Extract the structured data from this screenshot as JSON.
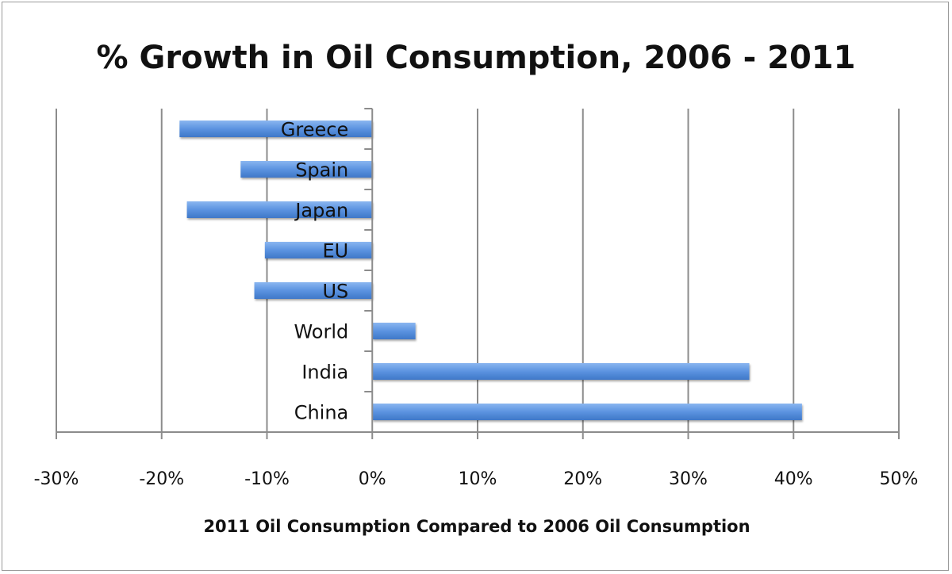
{
  "chart_data": {
    "type": "bar",
    "orientation": "horizontal",
    "title": "% Growth in Oil Consumption, 2006 - 2011",
    "xlabel": "2011 Oil Consumption Compared to 2006 Oil Consumption",
    "ylabel": "",
    "categories": [
      "Greece",
      "Spain",
      "Japan",
      "EU",
      "US",
      "World",
      "India",
      "China"
    ],
    "values": [
      -18.3,
      -12.5,
      -17.6,
      -10.2,
      -11.2,
      4.1,
      35.8,
      40.8
    ],
    "xlim": [
      -30,
      50
    ],
    "xticks": [
      -30,
      -20,
      -10,
      0,
      10,
      20,
      30,
      40,
      50
    ],
    "xtick_labels": [
      "-30%",
      "-20%",
      "-10%",
      "0%",
      "10%",
      "20%",
      "30%",
      "40%",
      "50%"
    ],
    "grid": true,
    "legend": "none",
    "bar_color": "#5b93e0"
  }
}
